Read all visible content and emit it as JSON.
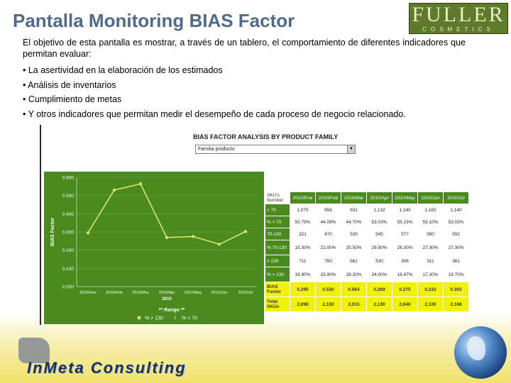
{
  "slide": {
    "title": "Pantalla Monitoring BIAS Factor",
    "intro": "El objetivo de esta pantalla es mostrar, a través de un tablero, el comportamiento de diferentes indicadores que permitan evaluar:",
    "bullets": [
      "• La asertividad en la elaboración de los estimados",
      "• Análisis de inventarios",
      "• Cumplimiento de metas",
      "• Y otros indicadores que permitan medir el desempeño de cada proceso de negocio relacionado."
    ]
  },
  "logo": {
    "main": "FULLER",
    "sub": "COSMETICS"
  },
  "brand": {
    "text": "InMeta Consulting"
  },
  "dashboard": {
    "title": "BIAS FACTOR ANALYSIS BY PRODUCT FAMILY",
    "select_value": "Familia producto"
  },
  "chart_data": {
    "type": "line",
    "ylabel": "BIAS Factor",
    "xlabel": "2010",
    "x": [
      "2010/Ene",
      "2010/Feb",
      "2010/Mar",
      "2010/Apr",
      "2010/May",
      "2010/Jun",
      "2010/Jul"
    ],
    "series": [
      {
        "values": [
          0.295,
          0.53,
          0.564,
          0.269,
          0.275,
          0.232,
          0.302
        ]
      }
    ],
    "yticks": [
      "0.000",
      "0.100",
      "0.200",
      "0.300",
      "0.400",
      "0.500",
      "0.600"
    ],
    "ylim": [
      0,
      0.6
    ],
    "legend": {
      "title": "** Rango **",
      "entries": [
        "% > 130",
        "/",
        "% < 70"
      ]
    },
    "colors": {
      "background": "#4a8a1f",
      "line": "#d6e86a",
      "grid": "#6aa040"
    }
  },
  "table": {
    "header_label": "SKU's Number",
    "columns": [
      "2010/Ene",
      "2010/Feb",
      "2010/Mar",
      "2010/Apr",
      "2010/May",
      "2010/Jun",
      "2010/Jul"
    ],
    "rows": [
      {
        "label": "< 70",
        "values": [
          "1,075",
          "956",
          "931",
          "1,132",
          "1,140",
          "1,182",
          "1,140"
        ]
      },
      {
        "label": "% < 70",
        "values": [
          "50.79%",
          "44.09%",
          "44.70%",
          "53.03%",
          "55.23%",
          "55.10%",
          "53.03%"
        ]
      },
      {
        "label": "70-130",
        "values": [
          "321",
          "470",
          "530",
          "545",
          "577",
          "590",
          "592"
        ]
      },
      {
        "label": "% 70-130",
        "values": [
          "15.30%",
          "22.00%",
          "25.50%",
          "26.50%",
          "28.30%",
          "27.30%",
          "27.30%"
        ]
      },
      {
        "label": "> 130",
        "values": [
          "711",
          "780",
          "561",
          "530",
          "306",
          "311",
          "361"
        ]
      },
      {
        "label": "% > 130",
        "values": [
          "33.90%",
          "33.90%",
          "28.20%",
          "24.00%",
          "16.47%",
          "17.30%",
          "19.70%"
        ]
      }
    ],
    "bias_row": {
      "label": "BIAS Factor",
      "values": [
        "0.295",
        "0.530",
        "0.564",
        "0.269",
        "0.275",
        "0.232",
        "0.302"
      ]
    },
    "total_row": {
      "label": "Total SKUs",
      "values": [
        "2,098",
        "2,150",
        "2,015",
        "2,130",
        "2,040",
        "2,100",
        "2,168"
      ]
    }
  }
}
